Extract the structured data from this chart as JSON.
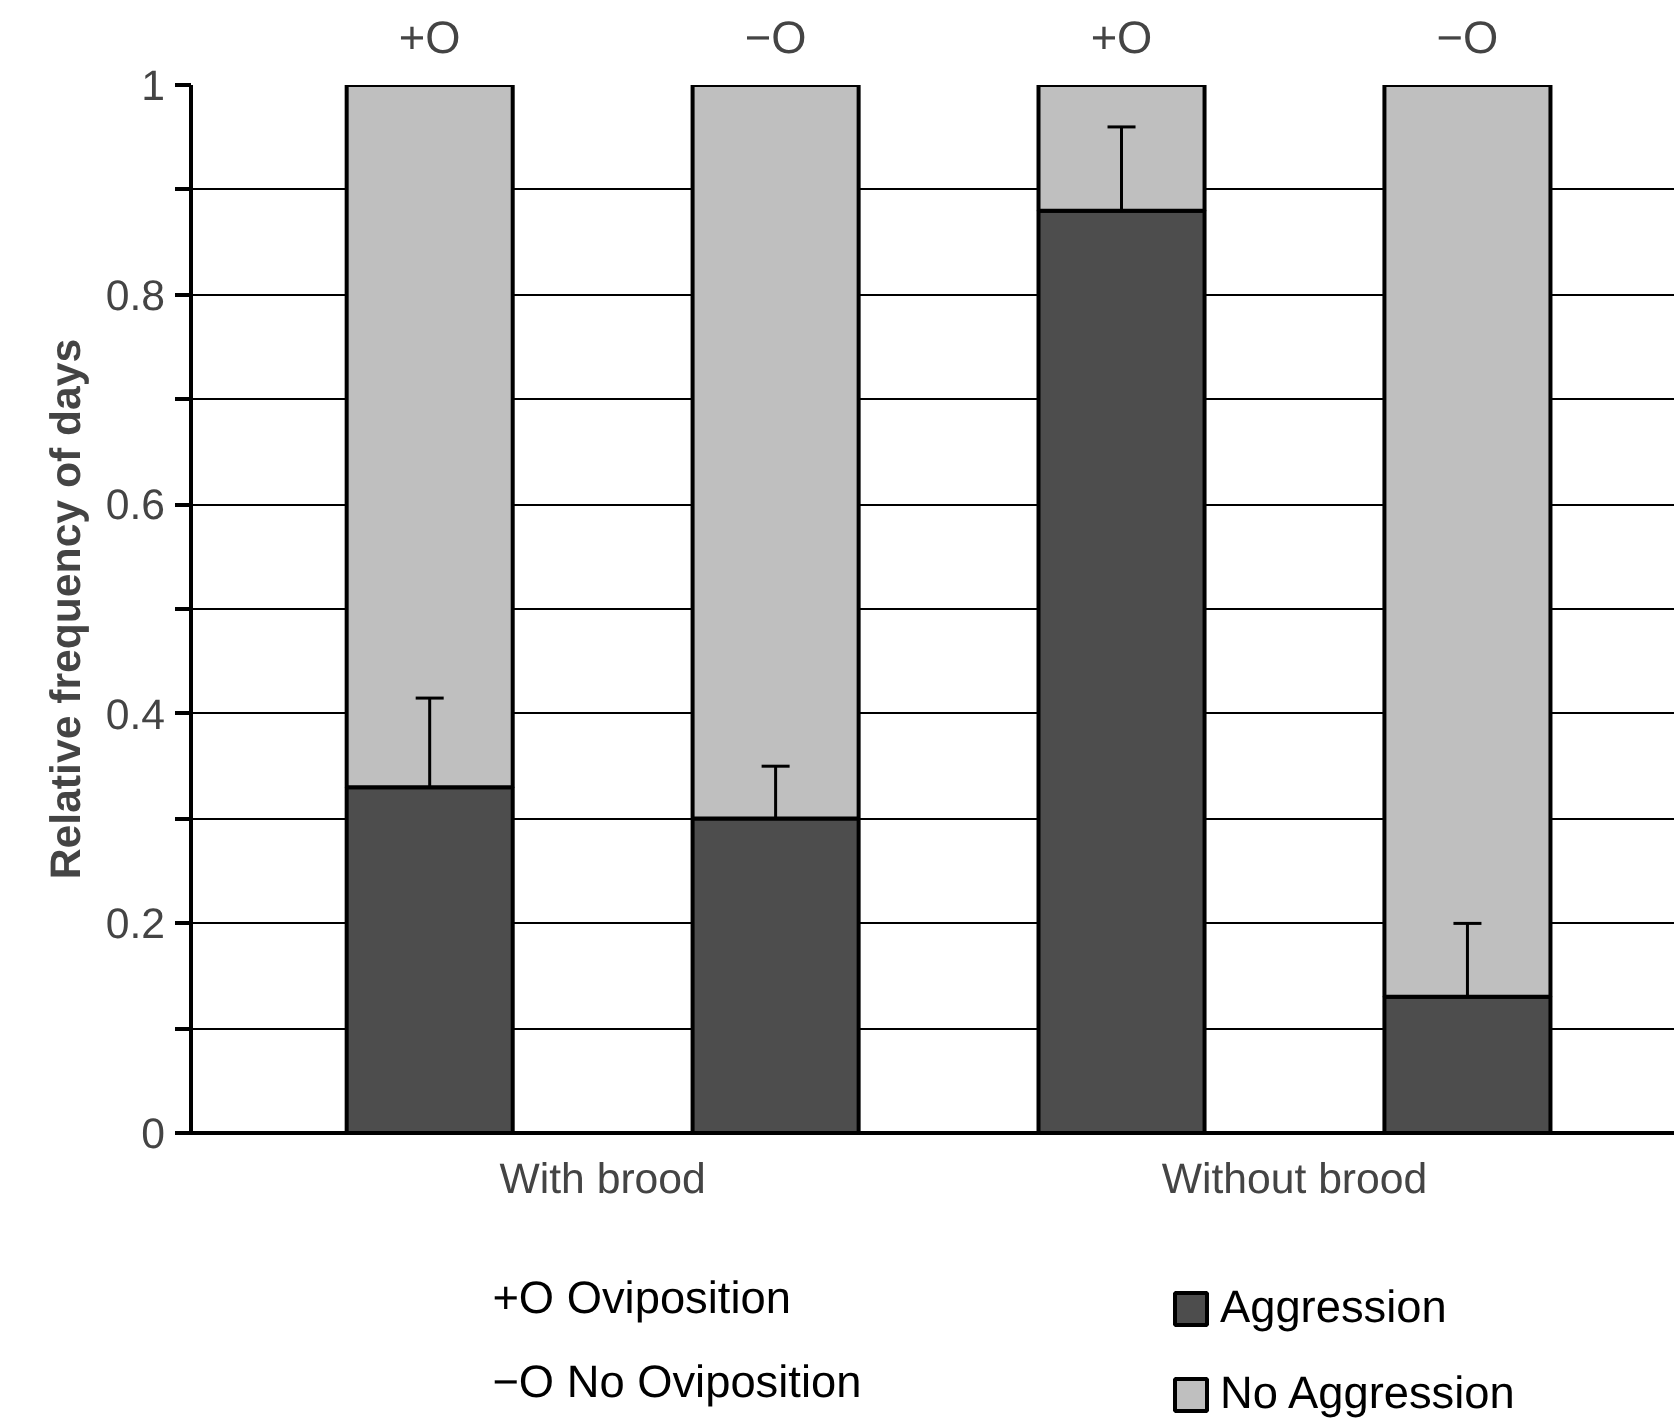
{
  "chart_data": {
    "type": "bar",
    "stacked": true,
    "ylabel": "Relative frequency of days",
    "categories": [
      "+O",
      "−O",
      "+O",
      "−O"
    ],
    "series": [
      {
        "name": "Aggression",
        "color": "#4d4d4d",
        "values": [
          0.33,
          0.3,
          0.88,
          0.13
        ],
        "errors": [
          [
            0.33,
            0.415
          ],
          [
            0.3,
            0.35
          ],
          [
            0.88,
            0.96
          ],
          [
            0.13,
            0.2
          ]
        ]
      },
      {
        "name": "No Aggression",
        "color": "#bfbfbf",
        "values": [
          0.67,
          0.7,
          0.12,
          0.87
        ]
      }
    ],
    "ylim": [
      0,
      1
    ],
    "yticks": [
      0,
      {
        "value": 0.1,
        "label": null
      },
      0.2,
      {
        "value": 0.3,
        "label": null
      },
      0.4,
      {
        "value": 0.5,
        "label": null
      },
      0.6,
      {
        "value": 0.7,
        "label": null
      },
      0.8,
      {
        "value": 0.9,
        "label": null
      },
      1
    ],
    "grid": "y",
    "legend": "bottom right",
    "annotations": [
      "With brood",
      "Without brood",
      "+O Oviposition",
      "−O No Oviposition"
    ]
  }
}
